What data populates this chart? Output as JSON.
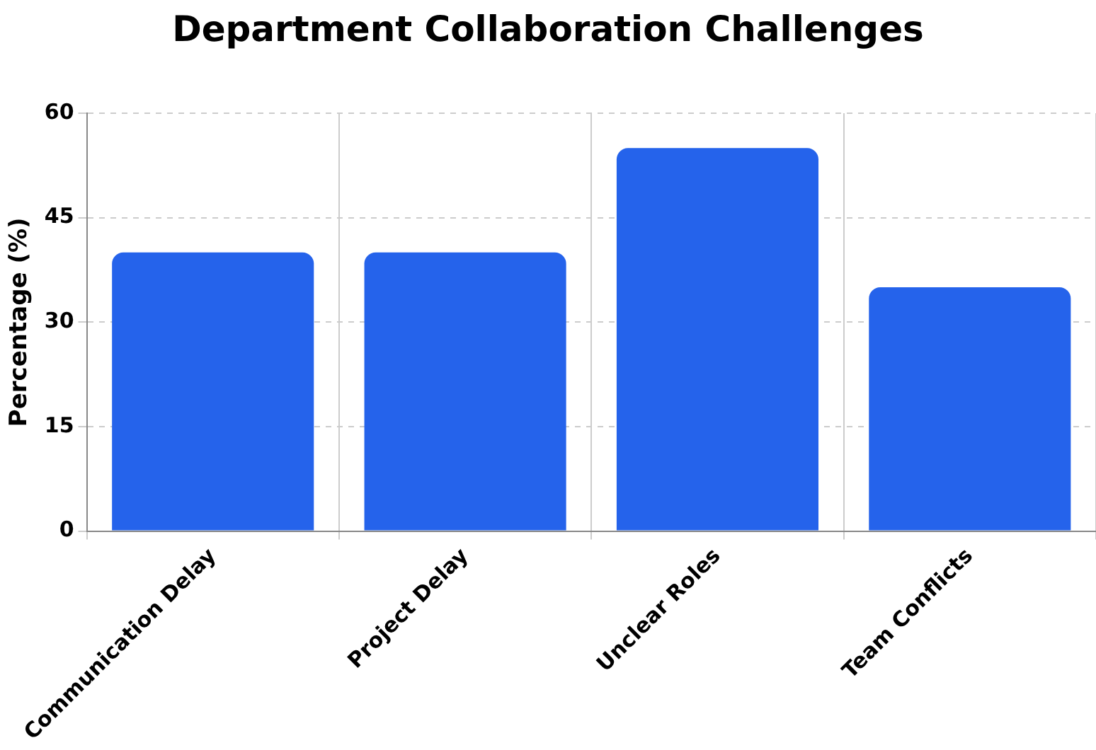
{
  "chart_data": {
    "type": "bar",
    "title": "Department Collaboration Challenges",
    "ylabel": "Percentage (%)",
    "categories": [
      "Communication Delay",
      "Project Delay",
      "Unclear Roles",
      "Team Conflicts"
    ],
    "values": [
      40,
      40,
      55,
      35
    ],
    "color": "#2563eb",
    "ylim": [
      0,
      60
    ],
    "yticks": [
      0,
      15,
      30,
      45,
      60
    ],
    "grid": true
  }
}
